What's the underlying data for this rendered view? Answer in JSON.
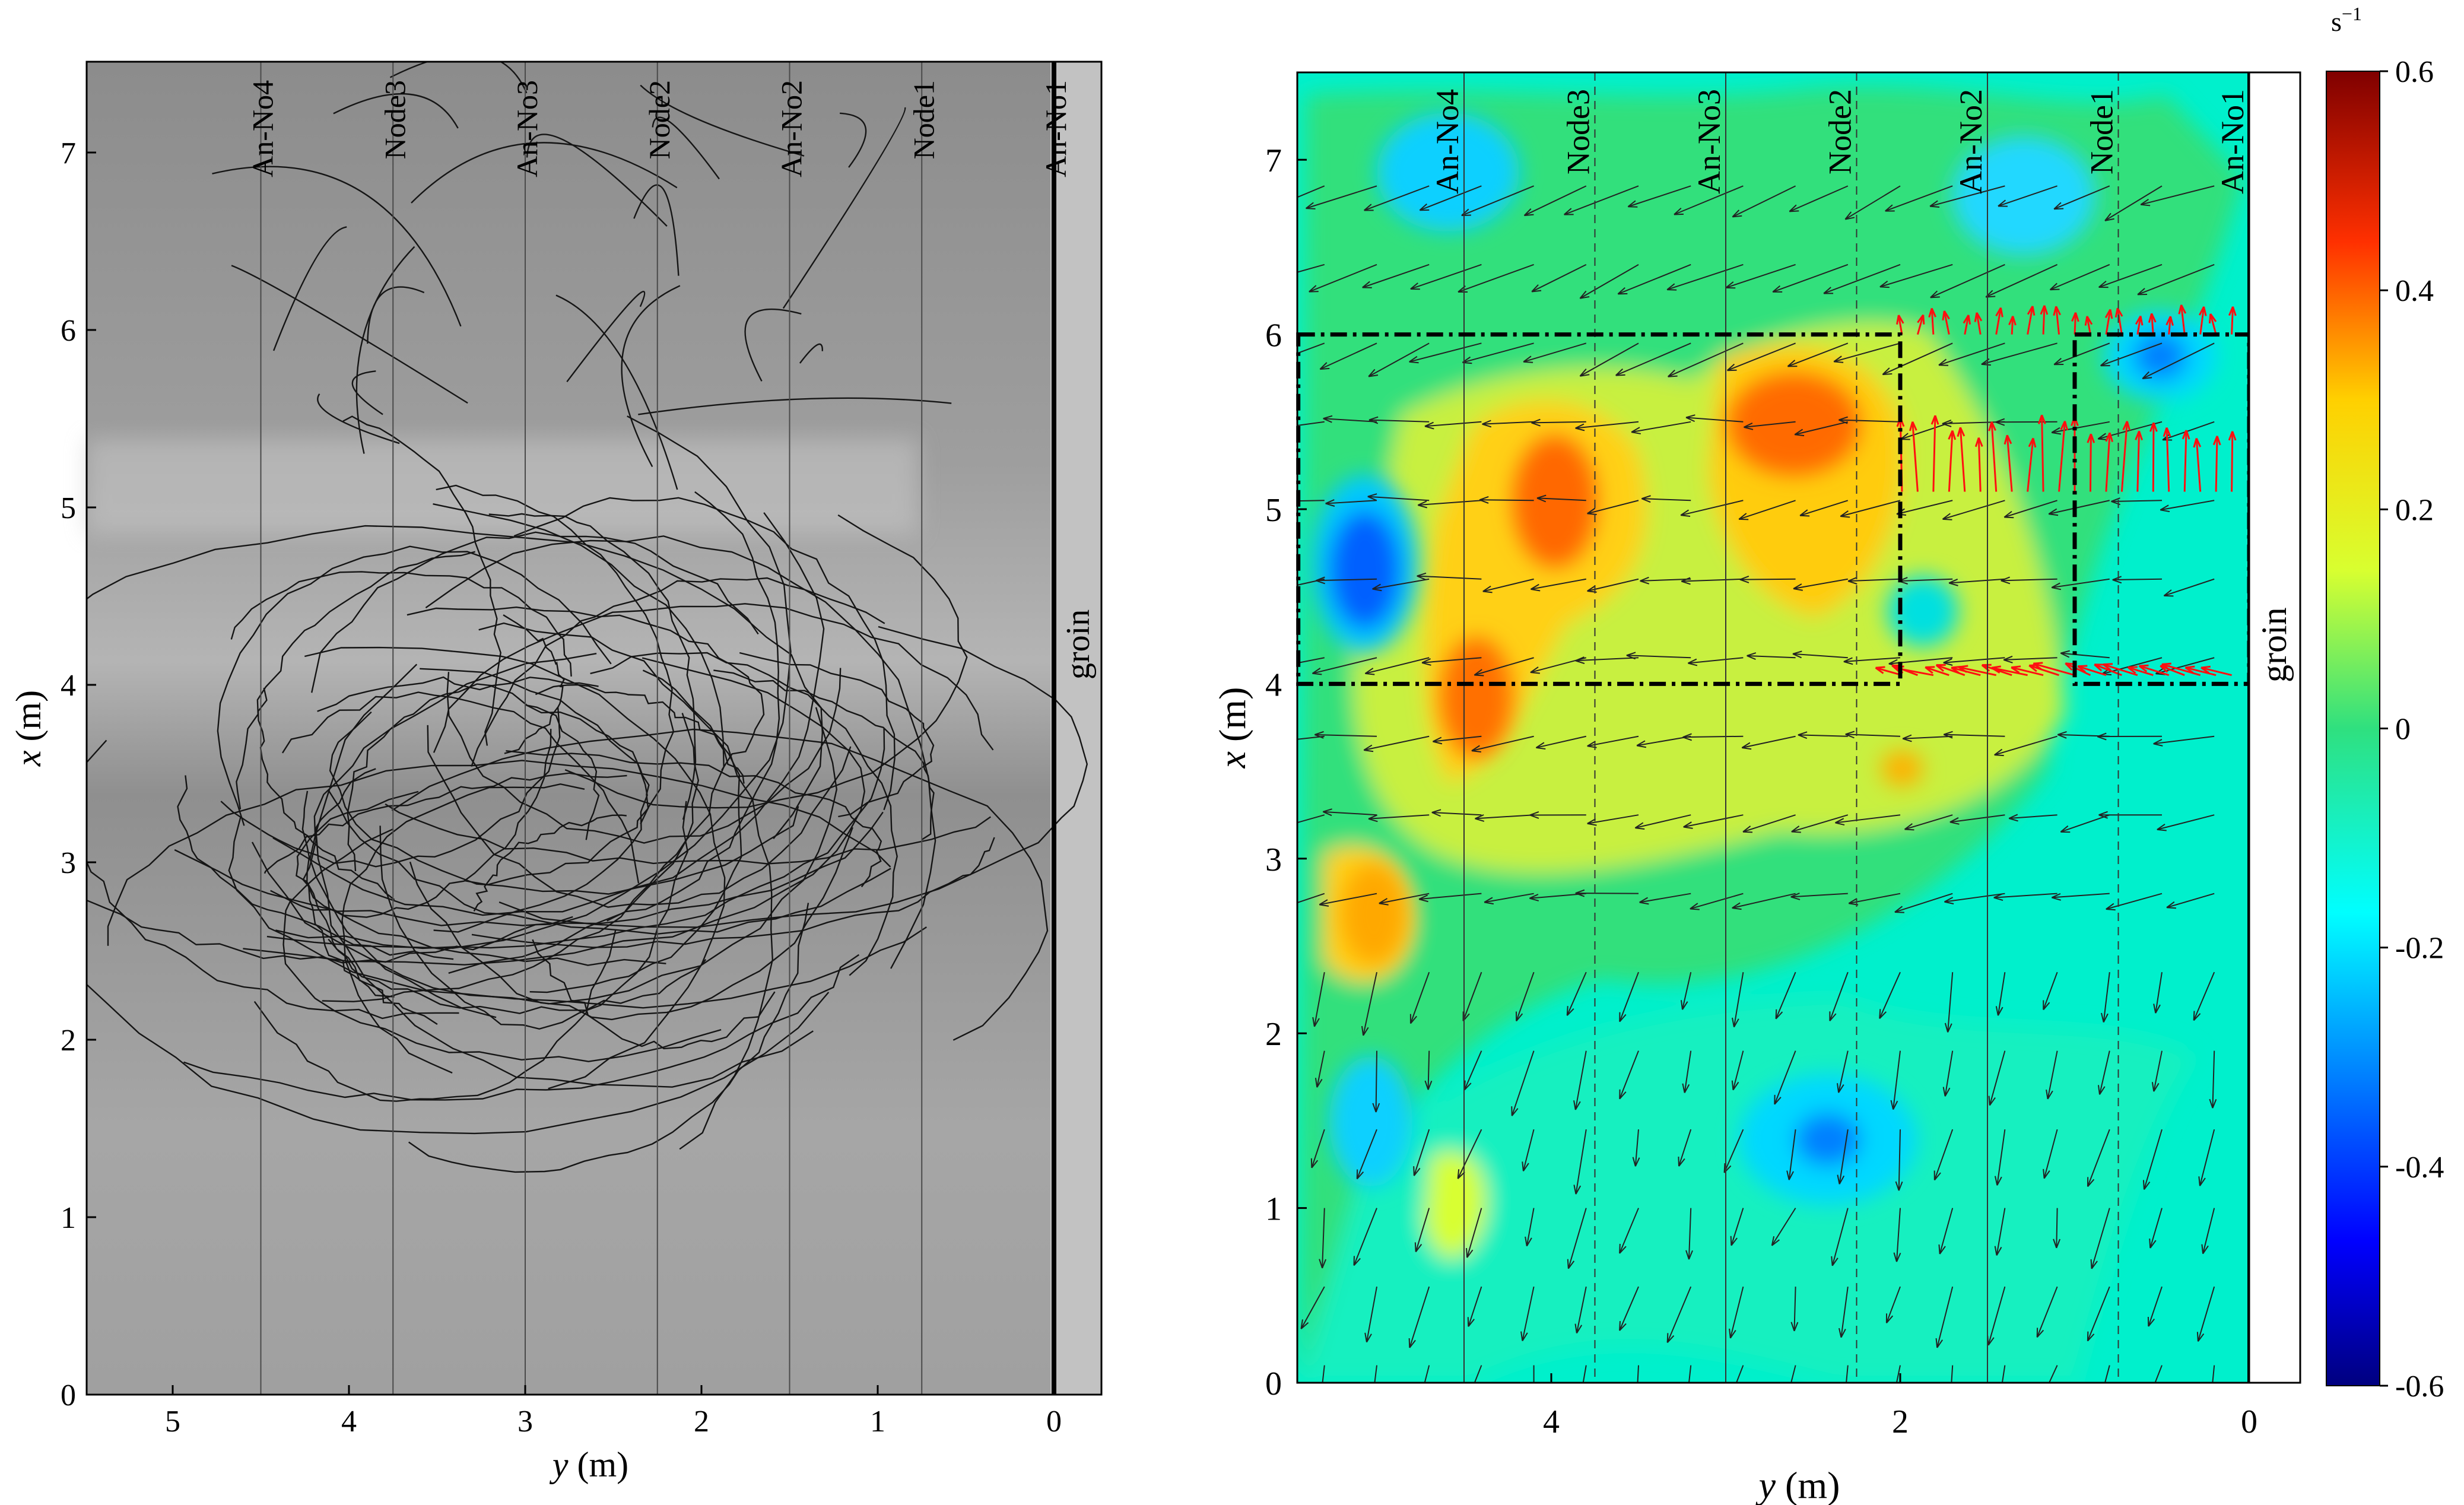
{
  "figure": {
    "node_lines": [
      "An-No4",
      "Node3",
      "An-No3",
      "Node2",
      "An-No2",
      "Node1",
      "An-No1"
    ],
    "groin_label": "groin",
    "colors": {
      "trajectory": "#111111",
      "bg_photo": "#9a9a9a",
      "box": "#000000",
      "red_arrow": "#ff1010",
      "black_arrow": "#222222"
    }
  },
  "chart_data": [
    {
      "type": "scatter",
      "subtype": "trajectory photo (particle tracks over flume photograph)",
      "xlabel": "y (m)",
      "ylabel": "x (m)",
      "xlim": [
        5.45,
        -0.25
      ],
      "ylim": [
        0,
        7.5
      ],
      "xticks": [
        5,
        4,
        3,
        2,
        1,
        0
      ],
      "yticks": [
        0,
        1,
        2,
        3,
        4,
        5,
        6,
        7
      ],
      "vertical_lines": [
        {
          "y": 4.5,
          "label": "An-No4"
        },
        {
          "y": 3.75,
          "label": "Node3"
        },
        {
          "y": 3.0,
          "label": "An-No3"
        },
        {
          "y": 2.25,
          "label": "Node2"
        },
        {
          "y": 1.5,
          "label": "An-No2"
        },
        {
          "y": 0.75,
          "label": "Node1"
        },
        {
          "y": 0.0,
          "label": "An-No1"
        }
      ],
      "annotation": "groin"
    },
    {
      "type": "heatmap",
      "subtype": "filled contour with velocity vectors",
      "xlabel": "y (m)",
      "ylabel": "x (m)",
      "xlim": [
        5.45,
        -0.25
      ],
      "ylim": [
        0,
        7.5
      ],
      "xticks": [
        4,
        2,
        0
      ],
      "yticks": [
        0,
        1,
        2,
        3,
        4,
        5,
        6,
        7
      ],
      "colorbar": {
        "unit": "s⁻¹",
        "range": [
          -0.6,
          0.6
        ],
        "ticks": [
          "0.6",
          "0.4",
          "0.2",
          "0",
          "-0.2",
          "-0.4",
          "-0.6"
        ],
        "colormap": "jet"
      },
      "vertical_lines": [
        {
          "y": 4.5,
          "label": "An-No4"
        },
        {
          "y": 3.75,
          "label": "Node3"
        },
        {
          "y": 3.0,
          "label": "An-No3"
        },
        {
          "y": 2.25,
          "label": "Node2"
        },
        {
          "y": 1.5,
          "label": "An-No2"
        },
        {
          "y": 0.75,
          "label": "Node1"
        },
        {
          "y": 0.0,
          "label": "An-No1"
        }
      ],
      "boxes": [
        {
          "y_range": [
            2.0,
            5.45
          ],
          "x_range": [
            4.0,
            6.0
          ]
        },
        {
          "y_range": [
            0.0,
            1.0
          ],
          "x_range": [
            4.0,
            6.0
          ]
        }
      ],
      "features": [
        {
          "y": 5.0,
          "x": 4.6,
          "value": -0.45
        },
        {
          "y": 0.45,
          "x": 5.95,
          "value": -0.3
        },
        {
          "y": 2.5,
          "x": 1.45,
          "value": -0.35
        },
        {
          "y": 2.6,
          "x": 5.45,
          "value": 0.4
        },
        {
          "y": 4.0,
          "x": 5.05,
          "value": 0.35
        },
        {
          "y": 4.5,
          "x": 3.9,
          "value": 0.35
        },
        {
          "y": 5.0,
          "x": 2.75,
          "value": 0.25
        },
        {
          "y": 4.5,
          "x": 1.0,
          "value": 0.15
        }
      ],
      "annotation": "groin"
    }
  ]
}
